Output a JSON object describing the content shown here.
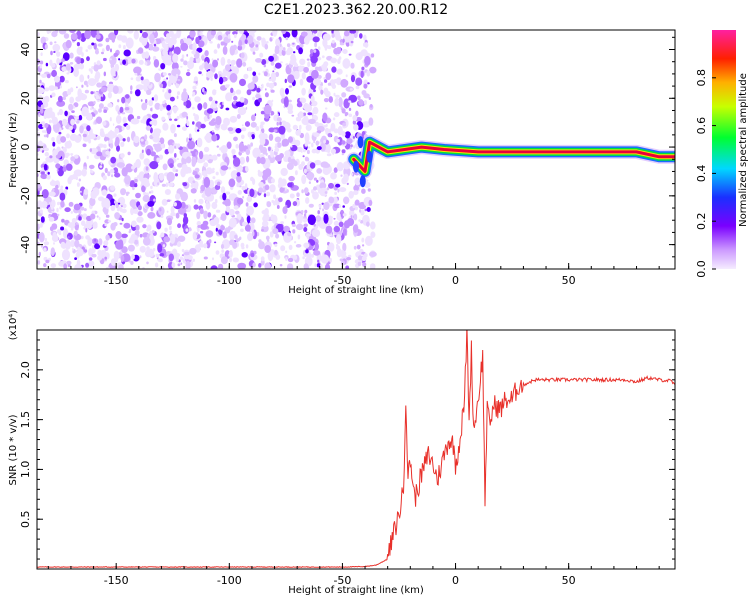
{
  "figure_title": "C2E1.2023.362.20.00.R12",
  "colors": {
    "snr_line": "#e8302a",
    "speckle": "#8a3cff",
    "speckle_dark": "#5a00ff",
    "trace_core": "#e8003a",
    "trace_mid": "#ffe000",
    "trace_outer": "#00e040",
    "trace_edge": "#1a6bff"
  },
  "chart_data": [
    {
      "type": "heatmap",
      "title": "C2E1.2023.362.20.00.R12",
      "xlabel": "Height of straight line (km)",
      "ylabel": "Frequency (Hz)",
      "xlim": [
        -185,
        97
      ],
      "ylim": [
        -50,
        48
      ],
      "x_ticks": [
        "-150",
        "-100",
        "-50",
        "0",
        "50"
      ],
      "y_ticks": [
        "40",
        "20",
        "0",
        "-20",
        "-40"
      ],
      "colorbar": {
        "label": "Normalized spectral amplitude",
        "range": [
          0,
          1
        ],
        "ticks": [
          "0.0",
          "0.2",
          "0.4",
          "0.6",
          "0.8"
        ],
        "colormap": "rainbow (white-violet-blue-cyan-green-yellow-red-magenta)"
      },
      "regions": [
        {
          "name": "noise",
          "x": [
            -185,
            -40
          ],
          "y": [
            -50,
            48
          ],
          "amplitude": "low, speckled 0.0-0.2"
        },
        {
          "name": "signal",
          "x": [
            -40,
            97
          ],
          "frequency_hz": -2,
          "amplitude": "high 0.6-0.9"
        }
      ],
      "signal_trace": [
        {
          "x": -45,
          "y": -5
        },
        {
          "x": -40,
          "y": -10
        },
        {
          "x": -38,
          "y": 2
        },
        {
          "x": -30,
          "y": -2
        },
        {
          "x": -15,
          "y": 0
        },
        {
          "x": -5,
          "y": -1
        },
        {
          "x": 10,
          "y": -2
        },
        {
          "x": 30,
          "y": -2
        },
        {
          "x": 60,
          "y": -2
        },
        {
          "x": 80,
          "y": -2
        },
        {
          "x": 90,
          "y": -4
        },
        {
          "x": 97,
          "y": -4
        }
      ]
    },
    {
      "type": "line",
      "xlabel": "Height of straight line (km)",
      "ylabel": "SNR (10 * v/v)",
      "y_multiplier": "(x10⁴)",
      "xlim": [
        -185,
        97
      ],
      "ylim": [
        0,
        24000
      ],
      "x_ticks": [
        "-150",
        "-100",
        "-50",
        "0",
        "50"
      ],
      "y_ticks": [
        "0.5",
        "1.0",
        "1.5",
        "2.0"
      ],
      "series": [
        {
          "x": [
            -185,
            -150,
            -100,
            -50,
            -40,
            -35,
            -30,
            -28,
            -25,
            -23,
            -22,
            -21,
            -20,
            -18,
            -15,
            -12,
            -10,
            -8,
            -5,
            -3,
            -1,
            0,
            2,
            4,
            5,
            6,
            7,
            8,
            10,
            12,
            13,
            14,
            15,
            17,
            20,
            22,
            25,
            28,
            30,
            35,
            40,
            50,
            60,
            70,
            75,
            80,
            85,
            90,
            95,
            97
          ],
          "y": [
            200,
            200,
            200,
            200,
            250,
            400,
            1000,
            3000,
            5500,
            8000,
            17500,
            9000,
            11000,
            7000,
            9500,
            11500,
            10500,
            9000,
            11500,
            13000,
            12500,
            10500,
            13000,
            17000,
            24000,
            15000,
            22000,
            14000,
            17000,
            21500,
            7000,
            16000,
            14500,
            16500,
            16000,
            17000,
            17000,
            18500,
            18500,
            19000,
            19000,
            19000,
            19000,
            19000,
            19000,
            18800,
            19200,
            19000,
            18900,
            18500
          ]
        }
      ]
    }
  ]
}
